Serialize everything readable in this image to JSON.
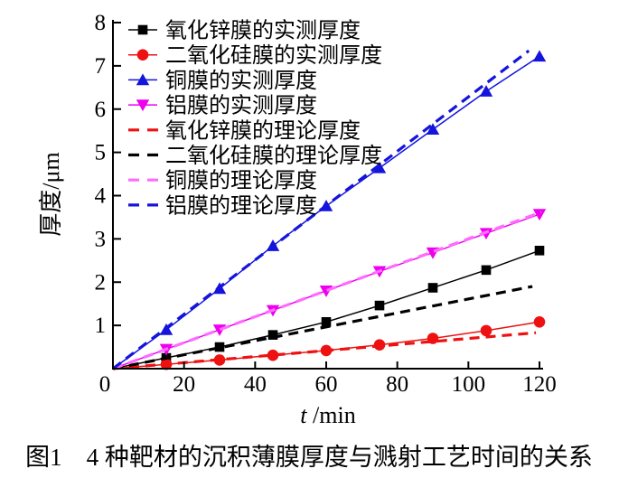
{
  "figure": {
    "caption": "图1　4 种靶材的沉积薄膜厚度与溅射工艺时间的关系"
  },
  "chart_data": {
    "type": "line",
    "title": "",
    "xlabel": "t /min",
    "xlabel_symbol": "t",
    "xlabel_unit": " /min",
    "ylabel": "厚度/μm",
    "xlim": [
      0,
      120
    ],
    "ylim": [
      0,
      8
    ],
    "x_ticks": [
      0,
      20,
      40,
      60,
      80,
      100,
      120
    ],
    "y_ticks": [
      0,
      1,
      2,
      3,
      4,
      5,
      6,
      7,
      8
    ],
    "grid": false,
    "legend_position": "upper-left",
    "x_unit": "min",
    "y_unit": "μm",
    "series": [
      {
        "name": "zno-measured",
        "label": "氧化锌膜的实测厚度",
        "color": "#000000",
        "style": "solid",
        "marker": "square",
        "x": [
          0,
          15,
          30,
          45,
          60,
          75,
          90,
          105,
          120
        ],
        "values": [
          0,
          0.25,
          0.5,
          0.78,
          1.08,
          1.46,
          1.87,
          2.28,
          2.73
        ]
      },
      {
        "name": "sio2-measured",
        "label": "二氧化硅膜的实测厚度",
        "color": "#ee1111",
        "style": "solid",
        "marker": "circle",
        "x": [
          0,
          15,
          30,
          45,
          60,
          75,
          90,
          105,
          120
        ],
        "values": [
          0,
          0.1,
          0.2,
          0.31,
          0.42,
          0.55,
          0.7,
          0.88,
          1.08
        ]
      },
      {
        "name": "cu-measured",
        "label": "铜膜的实测厚度",
        "color": "#1414dd",
        "style": "solid",
        "marker": "triangle-up",
        "x": [
          0,
          15,
          30,
          45,
          60,
          75,
          90,
          105,
          120
        ],
        "values": [
          0,
          0.9,
          1.85,
          2.84,
          3.76,
          4.64,
          5.53,
          6.41,
          7.22
        ]
      },
      {
        "name": "al-measured",
        "label": "铝膜的实测厚度",
        "color": "#ee00ee",
        "style": "solid",
        "marker": "triangle-down",
        "x": [
          0,
          15,
          30,
          45,
          60,
          75,
          90,
          105,
          120
        ],
        "values": [
          0,
          0.45,
          0.9,
          1.35,
          1.8,
          2.25,
          2.68,
          3.13,
          3.57
        ]
      },
      {
        "name": "zno-theory",
        "label": "氧化锌膜的理论厚度",
        "color": "#ee1111",
        "style": "dashed",
        "marker": "none",
        "x": [
          0,
          119
        ],
        "values": [
          0,
          0.83
        ]
      },
      {
        "name": "sio2-theory",
        "label": "二氧化硅膜的理论厚度",
        "color": "#000000",
        "style": "dashed",
        "marker": "none",
        "x": [
          0,
          118
        ],
        "values": [
          0,
          1.9
        ]
      },
      {
        "name": "cu-theory",
        "label": "铜膜的理论厚度",
        "color": "#ff6bff",
        "style": "dashed",
        "marker": "none",
        "x": [
          0,
          120.5
        ],
        "values": [
          0,
          3.62
        ]
      },
      {
        "name": "al-theory",
        "label": "铝膜的理论厚度",
        "color": "#1414dd",
        "style": "dashed",
        "marker": "none",
        "x": [
          0,
          117
        ],
        "values": [
          0,
          7.35
        ]
      }
    ]
  }
}
